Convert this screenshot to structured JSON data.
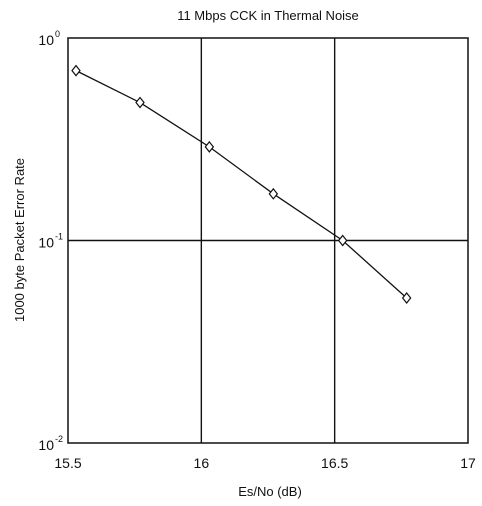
{
  "chart_data": {
    "type": "line",
    "title": "11 Mbps CCK in Thermal Noise",
    "xlabel": "Es/No (dB)",
    "ylabel": "1000 byte Packet Error Rate",
    "xlim": [
      15.5,
      17
    ],
    "ylim": [
      0.01,
      1
    ],
    "yscale": "log",
    "x_ticks": [
      {
        "value": 15.5,
        "label": "15.5"
      },
      {
        "value": 16,
        "label": "16"
      },
      {
        "value": 16.5,
        "label": "16.5"
      },
      {
        "value": 17,
        "label": "17"
      }
    ],
    "y_ticks": [
      {
        "value": 1,
        "base": "10",
        "exp": "0"
      },
      {
        "value": 0.1,
        "base": "10",
        "exp": "-1"
      },
      {
        "value": 0.01,
        "base": "10",
        "exp": "-2"
      }
    ],
    "grid": true,
    "series": [
      {
        "marker": "diamond",
        "x": [
          15.53,
          15.77,
          16.03,
          16.27,
          16.53,
          16.77
        ],
        "y": [
          0.69,
          0.48,
          0.29,
          0.17,
          0.1,
          0.052
        ]
      }
    ]
  }
}
